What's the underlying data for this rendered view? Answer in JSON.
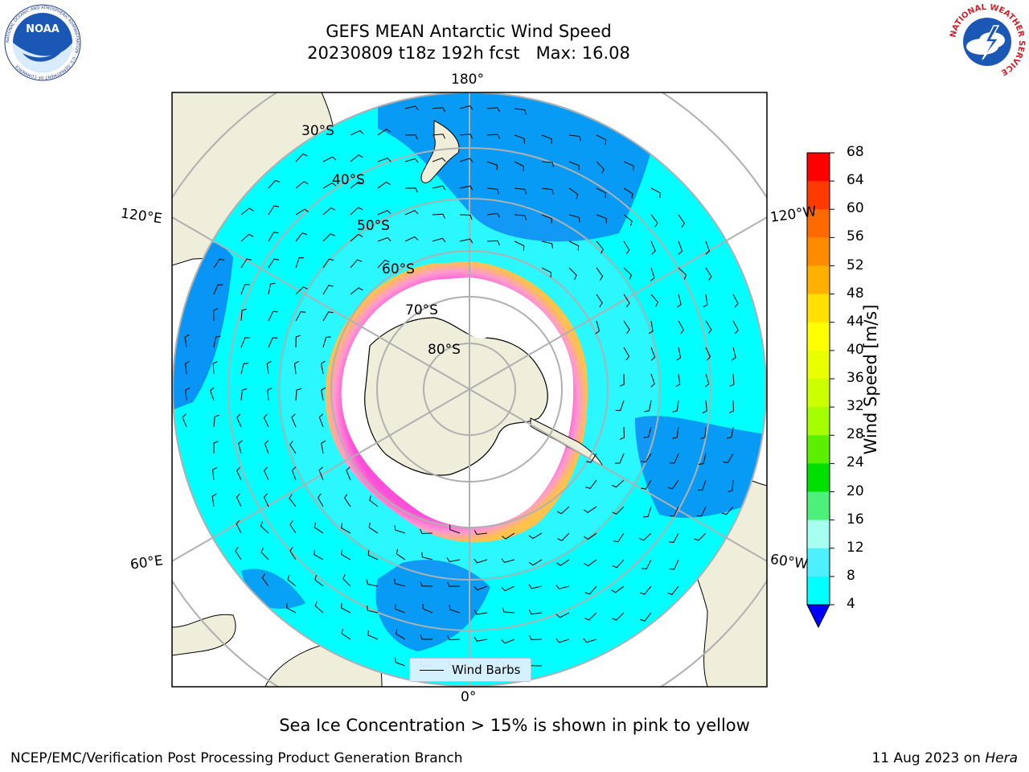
{
  "header": {
    "title_line1": "GEFS MEAN Antarctic Wind Speed",
    "title_line2": "20230809 t18z 192h fcst   Max: 16.08"
  },
  "logos": {
    "left": "NOAA",
    "left_ring_text": "NATIONAL OCEANIC AND ATMOSPHERIC ADMINISTRATION · U.S. DEPARTMENT OF COMMERCE",
    "right_ring_text": "NATIONAL WEATHER SERVICE"
  },
  "map": {
    "projection": "south-polar-stereographic",
    "longitude_labels": {
      "top": "180°",
      "bottom": "0°",
      "upper_left": "120°E",
      "lower_left": "60°E",
      "upper_right": "120°W",
      "lower_right": "60°W"
    },
    "latitude_labels": [
      "30°S",
      "40°S",
      "50°S",
      "60°S",
      "70°S",
      "80°S"
    ],
    "legend_label": "Wind Barbs",
    "colors": {
      "ocean_cyan": "#00ffff",
      "light_cyan": "#4cf0ff",
      "blue": "#0a7af2",
      "land": "#efeeda",
      "sea_ice": "#ff4fd9"
    }
  },
  "colorbar": {
    "title": "Wind Speed [m/s]",
    "ticks": [
      "68",
      "64",
      "60",
      "56",
      "52",
      "48",
      "44",
      "40",
      "36",
      "32",
      "28",
      "24",
      "20",
      "16",
      "12",
      "8",
      "4"
    ],
    "colors": [
      "#ff0000",
      "#ff3a00",
      "#ff6a00",
      "#ff8c00",
      "#ffb000",
      "#ffe000",
      "#ffff00",
      "#eaff00",
      "#ccff00",
      "#a6ff00",
      "#5cf000",
      "#00e000",
      "#4cf07a",
      "#a6fff0",
      "#4cf0ff",
      "#00ffff",
      "#0a7af2"
    ],
    "extend_color": "#0000ff"
  },
  "caption": "Sea Ice Concentration > 15% is shown in pink to yellow",
  "footer": {
    "left": "NCEP/EMC/Verification Post Processing Product Generation Branch",
    "right_date": "11 Aug 2023 on ",
    "right_host": "Hera"
  }
}
